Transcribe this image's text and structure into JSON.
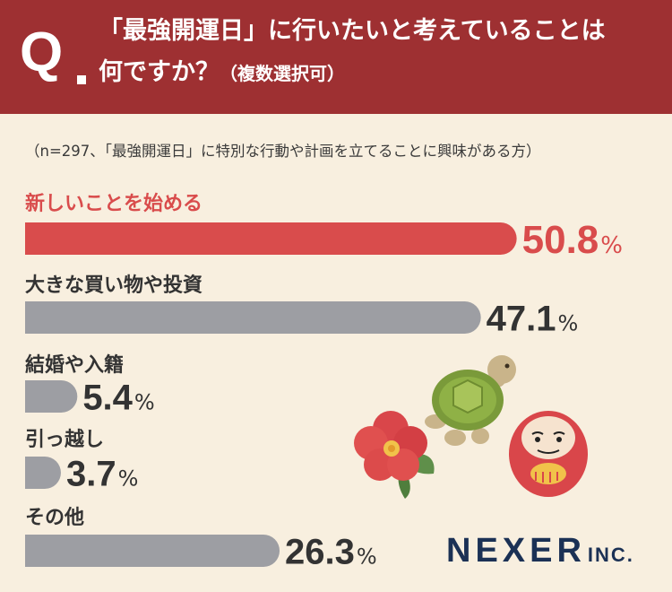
{
  "header": {
    "q_mark": "Q",
    "question_line1": "「最強開運日」に行いたいと考えていることは",
    "question_line2": "何ですか？",
    "question_note": "（複数選択可）"
  },
  "sample_note": "（n=297、「最強開運日」に特別な行動や計画を立てることに興味がある方）",
  "chart_data": {
    "type": "bar",
    "orientation": "horizontal",
    "categories": [
      "新しいことを始める",
      "大きな買い物や投資",
      "結婚や入籍",
      "引っ越し",
      "その他"
    ],
    "values": [
      50.8,
      47.1,
      5.4,
      3.7,
      26.3
    ],
    "unit": "%",
    "value_labels": [
      "50.8",
      "47.1",
      "5.4",
      "3.7",
      "26.3"
    ],
    "highlight_index": 0,
    "colors": {
      "highlight": "#d94c4c",
      "default": "#9d9ea3",
      "value_text": "#333333"
    }
  },
  "brand": {
    "name": "NEXER",
    "suffix": "INC.",
    "color": "#1b3155"
  },
  "colors": {
    "header_bg": "#9e3032",
    "page_bg": "#f8efdf"
  }
}
